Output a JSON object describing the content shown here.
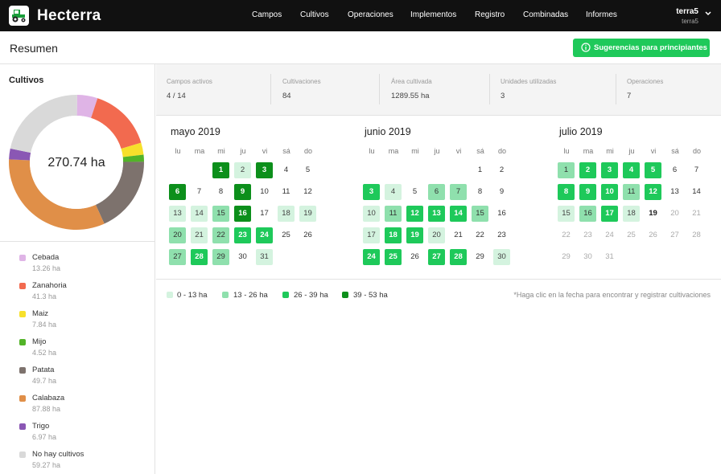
{
  "app": {
    "name": "Hecterra"
  },
  "nav": [
    {
      "label": "Campos"
    },
    {
      "label": "Cultivos"
    },
    {
      "label": "Operaciones"
    },
    {
      "label": "Implementos"
    },
    {
      "label": "Registro"
    },
    {
      "label": "Combinadas"
    },
    {
      "label": "Informes"
    }
  ],
  "user": {
    "name": "terra5",
    "sub": "terra5"
  },
  "header": {
    "title": "Resumen",
    "suggest_label": "Sugerencias para principiantes"
  },
  "crops": {
    "title": "Cultivos",
    "total": "270.74 ha",
    "items": [
      {
        "name": "Cebada",
        "value": "13.26 ha",
        "color": "#dfb4e6",
        "ha": 13.26
      },
      {
        "name": "Zanahoria",
        "value": "41.3 ha",
        "color": "#f26a4f",
        "ha": 41.3
      },
      {
        "name": "Maiz",
        "value": "7.84 ha",
        "color": "#f7e02b",
        "ha": 7.84
      },
      {
        "name": "Mijo",
        "value": "4.52 ha",
        "color": "#52b328",
        "ha": 4.52
      },
      {
        "name": "Patata",
        "value": "49.7 ha",
        "color": "#7d726d",
        "ha": 49.7
      },
      {
        "name": "Calabaza",
        "value": "87.88 ha",
        "color": "#e08f48",
        "ha": 87.88
      },
      {
        "name": "Trigo",
        "value": "6.97 ha",
        "color": "#8a57b4",
        "ha": 6.97
      },
      {
        "name": "No hay cultivos",
        "value": "59.27 ha",
        "color": "#d9d9d9",
        "ha": 59.27
      }
    ]
  },
  "stats": [
    {
      "label": "Campos activos",
      "value": "4 / 14"
    },
    {
      "label": "Cultivaciones",
      "value": "84"
    },
    {
      "label": "Área cultivada",
      "value": "1289.55 ha"
    },
    {
      "label": "Unidades utilizadas",
      "value": "3"
    },
    {
      "label": "Operaciones",
      "value": "7"
    }
  ],
  "weekdays": [
    "lu",
    "ma",
    "mi",
    "ju",
    "vi",
    "sá",
    "do"
  ],
  "months": [
    {
      "title": "mayo 2019",
      "offset": 2,
      "days": 31,
      "levels": {
        "1": 4,
        "2": 1,
        "3": 4,
        "6": 4,
        "9": 4,
        "13": 1,
        "14": 1,
        "15": 2,
        "16": 4,
        "18": 1,
        "19": 1,
        "20": 2,
        "21": 1,
        "22": 2,
        "23": 3,
        "24": 3,
        "27": 2,
        "28": 3,
        "29": 2,
        "31": 1
      }
    },
    {
      "title": "junio 2019",
      "offset": 5,
      "days": 30,
      "levels": {
        "3": 3,
        "4": 1,
        "6": 2,
        "7": 2,
        "10": 1,
        "11": 2,
        "12": 3,
        "13": 3,
        "14": 3,
        "15": 2,
        "17": 1,
        "18": 3,
        "19": 3,
        "20": 1,
        "24": 3,
        "25": 3,
        "27": 3,
        "28": 3,
        "30": 1
      }
    },
    {
      "title": "julio 2019",
      "offset": 0,
      "days": 31,
      "today": 19,
      "levels": {
        "1": 2,
        "2": 3,
        "3": 3,
        "4": 3,
        "5": 3,
        "8": 3,
        "9": 3,
        "10": 3,
        "11": 2,
        "12": 3,
        "15": 1,
        "16": 2,
        "17": 3,
        "18": 1
      }
    }
  ],
  "heat_legend": [
    {
      "label": "0 - 13 ha",
      "color": "#d4f3df"
    },
    {
      "label": "13 - 26 ha",
      "color": "#8fe0ad"
    },
    {
      "label": "26 - 39 ha",
      "color": "#1ec95a"
    },
    {
      "label": "39 - 53 ha",
      "color": "#0c8f1b"
    }
  ],
  "hint": "*Haga clic en la fecha para encontrar y registrar cultivaciones"
}
